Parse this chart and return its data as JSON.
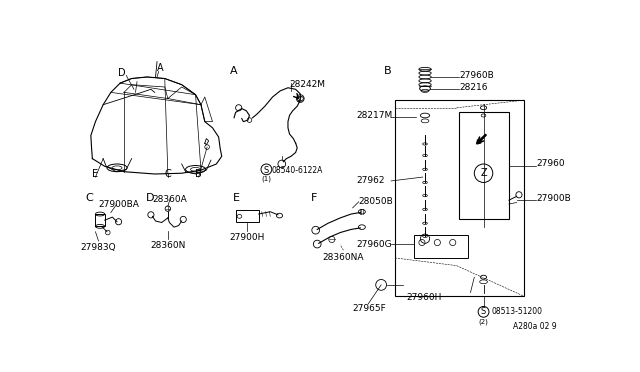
{
  "bg_color": "#ffffff",
  "text_color": "#000000",
  "fig_width": 6.4,
  "fig_height": 3.72,
  "dpi": 100,
  "diagram_code": "A280a 02 9",
  "labels": {
    "A_section": "A",
    "B_section": "B",
    "C_section": "C",
    "D_section": "D",
    "E_section": "E",
    "F_section": "F",
    "p28242M": "28242M",
    "p08540": "×08540-6122A",
    "p08540_label": "08540-6122A",
    "p27960B": "27960B",
    "p28216": "28216",
    "p28217M": "28217M",
    "p27962": "27962",
    "p27960": "27960",
    "p27960G": "27960G",
    "p27900B": "27900B",
    "p27965F": "27965F",
    "p27960H": "27960H",
    "p08513": "08513-51200",
    "p27900BA": "27900BA",
    "p27983Q": "27983Q",
    "p28360A": "28360A",
    "p28360N": "28360N",
    "p27900H": "27900H",
    "p28050B": "28050B",
    "p28360NA": "28360NA",
    "car_D": "D",
    "car_A": "A",
    "car_E": "E",
    "car_C": "C",
    "car_B": "B"
  }
}
